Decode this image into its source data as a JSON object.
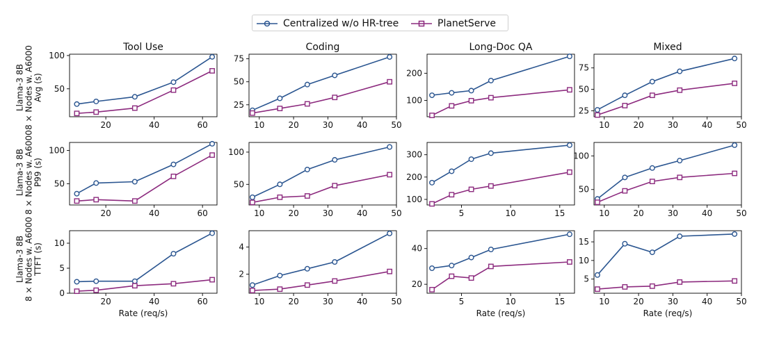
{
  "legend": {
    "items": [
      {
        "label": "Centralized w/o HR-tree",
        "color": "#2a5590",
        "marker": "circle"
      },
      {
        "label": "PlanetServe",
        "color": "#8c2a7e",
        "marker": "square"
      }
    ]
  },
  "row_labels": [
    [
      "Llama-3 8B",
      "8 × Nodes w. A6000",
      "Avg (s)"
    ],
    [
      "Llama-3 8B",
      "8 × Nodes w. A6000",
      "P99 (s)"
    ],
    [
      "Llama-3 8B",
      "8 × Nodes w. A6000",
      "TTFT (s)"
    ]
  ],
  "chart_data": [
    {
      "type": "line",
      "title": "Tool Use",
      "xlabel": "",
      "xlim": [
        5,
        66
      ],
      "ylim": [
        8,
        102
      ],
      "xticks": [
        20,
        40,
        60
      ],
      "yticks": [
        50,
        100
      ],
      "x": [
        8,
        16,
        32,
        48,
        64
      ],
      "series": [
        {
          "name": "Centralized w/o HR-tree",
          "values": [
            27,
            31,
            38,
            60,
            98
          ]
        },
        {
          "name": "PlanetServe",
          "values": [
            13,
            15,
            21,
            48,
            77
          ]
        }
      ]
    },
    {
      "type": "line",
      "title": "Coding",
      "xlabel": "",
      "xlim": [
        7,
        50
      ],
      "ylim": [
        12,
        80
      ],
      "xticks": [
        10,
        20,
        30,
        40,
        50
      ],
      "yticks": [
        25,
        50,
        75
      ],
      "x": [
        8,
        16,
        24,
        32,
        48
      ],
      "series": [
        {
          "name": "Centralized w/o HR-tree",
          "values": [
            19,
            32,
            47,
            57,
            77
          ]
        },
        {
          "name": "PlanetServe",
          "values": [
            16,
            21,
            26,
            33,
            50
          ]
        }
      ]
    },
    {
      "type": "line",
      "title": "Long-Doc QA",
      "xlabel": "",
      "xlim": [
        1.5,
        16.5
      ],
      "ylim": [
        40,
        270
      ],
      "xticks": [],
      "yticks": [
        100,
        200
      ],
      "x": [
        2,
        4,
        6,
        8,
        16
      ],
      "series": [
        {
          "name": "Centralized w/o HR-tree",
          "values": [
            119,
            128,
            136,
            173,
            262
          ]
        },
        {
          "name": "PlanetServe",
          "values": [
            45,
            80,
            99,
            110,
            139
          ]
        }
      ]
    },
    {
      "type": "line",
      "title": "Mixed",
      "xlabel": "",
      "xlim": [
        7,
        50
      ],
      "ylim": [
        18,
        91
      ],
      "xticks": [
        10,
        20,
        30,
        40,
        50
      ],
      "yticks": [
        25,
        50,
        75
      ],
      "x": [
        8,
        16,
        24,
        32,
        48
      ],
      "series": [
        {
          "name": "Centralized w/o HR-tree",
          "values": [
            26,
            43,
            59,
            71,
            86
          ]
        },
        {
          "name": "PlanetServe",
          "values": [
            20,
            31,
            43,
            49,
            57
          ]
        }
      ]
    },
    {
      "type": "line",
      "title": "",
      "xlabel": "",
      "xlim": [
        5,
        66
      ],
      "ylim": [
        18,
        112
      ],
      "xticks": [
        20,
        40,
        60
      ],
      "yticks": [
        50,
        100
      ],
      "x": [
        8,
        16,
        32,
        48,
        64
      ],
      "series": [
        {
          "name": "Centralized w/o HR-tree",
          "values": [
            35,
            51,
            53,
            79,
            110
          ]
        },
        {
          "name": "PlanetServe",
          "values": [
            24,
            26,
            24,
            61,
            93
          ]
        }
      ]
    },
    {
      "type": "line",
      "title": "",
      "xlabel": "",
      "xlim": [
        7,
        50
      ],
      "ylim": [
        18,
        115
      ],
      "xticks": [
        10,
        20,
        30,
        40,
        50
      ],
      "yticks": [
        50,
        100
      ],
      "x": [
        8,
        16,
        24,
        32,
        48
      ],
      "series": [
        {
          "name": "Centralized w/o HR-tree",
          "values": [
            30,
            50,
            73,
            88,
            108
          ]
        },
        {
          "name": "PlanetServe",
          "values": [
            22,
            30,
            32,
            48,
            65
          ]
        }
      ]
    },
    {
      "type": "line",
      "title": "",
      "xlabel": "",
      "xlim": [
        1.5,
        16.5
      ],
      "ylim": [
        75,
        355
      ],
      "xticks": [
        5,
        10,
        15
      ],
      "yticks": [
        100,
        200,
        300
      ],
      "x": [
        2,
        4,
        6,
        8,
        16
      ],
      "series": [
        {
          "name": "Centralized w/o HR-tree",
          "values": [
            175,
            226,
            280,
            307,
            343
          ]
        },
        {
          "name": "PlanetServe",
          "values": [
            80,
            121,
            145,
            160,
            222
          ]
        }
      ]
    },
    {
      "type": "line",
      "title": "",
      "xlabel": "",
      "xlim": [
        7,
        50
      ],
      "ylim": [
        27,
        120
      ],
      "xticks": [
        10,
        20,
        30,
        40,
        50
      ],
      "yticks": [
        50,
        100
      ],
      "x": [
        8,
        16,
        24,
        32,
        48
      ],
      "series": [
        {
          "name": "Centralized w/o HR-tree",
          "values": [
            36,
            68,
            82,
            93,
            116
          ]
        },
        {
          "name": "PlanetServe",
          "values": [
            31,
            48,
            62,
            68,
            74
          ]
        }
      ]
    },
    {
      "type": "line",
      "title": "",
      "xlabel": "Rate (req/s)",
      "xlim": [
        5,
        66
      ],
      "ylim": [
        0,
        12.5
      ],
      "xticks": [
        20,
        40,
        60
      ],
      "yticks": [
        0,
        5,
        10
      ],
      "x": [
        8,
        16,
        32,
        48,
        64
      ],
      "series": [
        {
          "name": "Centralized w/o HR-tree",
          "values": [
            2.3,
            2.4,
            2.4,
            7.9,
            12.0
          ]
        },
        {
          "name": "PlanetServe",
          "values": [
            0.4,
            0.6,
            1.5,
            1.9,
            2.7
          ]
        }
      ]
    },
    {
      "type": "line",
      "title": "",
      "xlabel": "",
      "xlim": [
        7,
        50
      ],
      "ylim": [
        0.6,
        5.2
      ],
      "xticks": [
        10,
        20,
        30,
        40,
        50
      ],
      "yticks": [
        2,
        4
      ],
      "x": [
        8,
        16,
        24,
        32,
        48
      ],
      "series": [
        {
          "name": "Centralized w/o HR-tree",
          "values": [
            1.2,
            1.9,
            2.4,
            2.9,
            5.0
          ]
        },
        {
          "name": "PlanetServe",
          "values": [
            0.8,
            0.9,
            1.2,
            1.5,
            2.2
          ]
        }
      ]
    },
    {
      "type": "line",
      "title": "",
      "xlabel": "Rate (req/s)",
      "xlim": [
        1.5,
        16.5
      ],
      "ylim": [
        15,
        50
      ],
      "xticks": [
        5,
        10,
        15
      ],
      "yticks": [
        20,
        40
      ],
      "x": [
        2,
        4,
        6,
        8,
        16
      ],
      "series": [
        {
          "name": "Centralized w/o HR-tree",
          "values": [
            29,
            30.5,
            35,
            39.5,
            48
          ]
        },
        {
          "name": "PlanetServe",
          "values": [
            17,
            24.5,
            23.5,
            30,
            32.5
          ]
        }
      ]
    },
    {
      "type": "line",
      "title": "",
      "xlabel": "Rate (req/s)",
      "xlim": [
        7,
        50
      ],
      "ylim": [
        1.2,
        18
      ],
      "xticks": [
        10,
        20,
        30,
        40,
        50
      ],
      "yticks": [
        5,
        10,
        15
      ],
      "x": [
        8,
        16,
        24,
        32,
        48
      ],
      "series": [
        {
          "name": "Centralized w/o HR-tree",
          "values": [
            6.1,
            14.5,
            12.2,
            16.5,
            17.1
          ]
        },
        {
          "name": "PlanetServe",
          "values": [
            2.3,
            2.9,
            3.1,
            4.2,
            4.5
          ]
        }
      ]
    }
  ]
}
